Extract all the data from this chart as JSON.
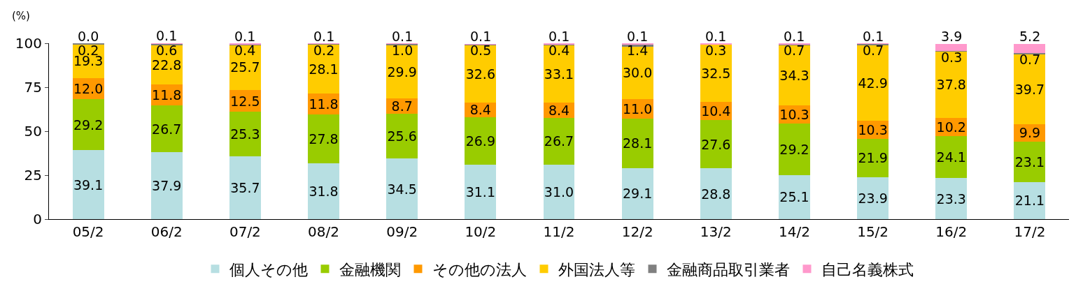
{
  "chart_data": {
    "type": "bar",
    "stacked": true,
    "ylabel": "(%)",
    "categories": [
      "05/2",
      "06/2",
      "07/2",
      "08/2",
      "09/2",
      "10/2",
      "11/2",
      "12/2",
      "13/2",
      "14/2",
      "15/2",
      "16/2",
      "17/2"
    ],
    "series": [
      {
        "name": "個人その他",
        "color": "#b7dfe2",
        "values": [
          39.1,
          37.9,
          35.7,
          31.8,
          34.5,
          31.1,
          31.0,
          29.1,
          28.8,
          25.1,
          23.9,
          23.3,
          21.1
        ],
        "value_labels": [
          "39.1",
          "37.9",
          "35.7",
          "31.8",
          "34.5",
          "31.1",
          "31.0",
          "29.1",
          "28.8",
          "25.1",
          "23.9",
          "23.3",
          "21.1"
        ]
      },
      {
        "name": "金融機関",
        "color": "#99cc00",
        "values": [
          29.2,
          26.7,
          25.3,
          27.8,
          25.6,
          26.9,
          26.7,
          28.1,
          27.6,
          29.2,
          21.9,
          24.1,
          23.1
        ],
        "value_labels": [
          "29.2",
          "26.7",
          "25.3",
          "27.8",
          "25.6",
          "26.9",
          "26.7",
          "28.1",
          "27.6",
          "29.2",
          "21.9",
          "24.1",
          "23.1"
        ]
      },
      {
        "name": "その他の法人",
        "color": "#ff9900",
        "values": [
          12.0,
          11.8,
          12.5,
          11.8,
          8.7,
          8.4,
          8.4,
          11.0,
          10.4,
          10.3,
          10.3,
          10.2,
          9.9
        ],
        "value_labels": [
          "12.0",
          "11.8",
          "12.5",
          "11.8",
          "8.7",
          "8.4",
          "8.4",
          "11.0",
          "10.4",
          "10.3",
          "10.3",
          "10.2",
          "9.9"
        ]
      },
      {
        "name": "外国法人等",
        "color": "#ffcc00",
        "values": [
          19.3,
          22.8,
          25.7,
          28.1,
          29.9,
          32.6,
          33.1,
          30.0,
          32.5,
          34.3,
          42.9,
          37.8,
          39.7
        ],
        "value_labels": [
          "19.3",
          "22.8",
          "25.7",
          "28.1",
          "29.9",
          "32.6",
          "33.1",
          "30.0",
          "32.5",
          "34.3",
          "42.9",
          "37.8",
          "39.7"
        ]
      },
      {
        "name": "金融商品取引業者",
        "color": "#808080",
        "values": [
          0.2,
          0.6,
          0.4,
          0.2,
          1.0,
          0.5,
          0.4,
          1.4,
          0.3,
          0.7,
          0.7,
          0.3,
          0.7
        ],
        "value_labels": [
          "0.2",
          "0.6",
          "0.4",
          "0.2",
          "1.0",
          "0.5",
          "0.4",
          "1.4",
          "0.3",
          "0.7",
          "0.7",
          "0.3",
          "0.7"
        ]
      },
      {
        "name": "自己名義株式",
        "color": "#ff99cc",
        "values": [
          0.0,
          0.1,
          0.1,
          0.1,
          0.1,
          0.1,
          0.1,
          0.1,
          0.1,
          0.1,
          0.1,
          3.9,
          5.2
        ],
        "value_labels": [
          "0.0",
          "0.1",
          "0.1",
          "0.1",
          "0.1",
          "0.1",
          "0.1",
          "0.1",
          "0.1",
          "0.1",
          "0.1",
          "3.9",
          "5.2"
        ]
      }
    ],
    "ylim": [
      0,
      100
    ],
    "yticks": [
      0,
      25,
      50,
      75,
      100
    ],
    "legend": "bottom"
  }
}
